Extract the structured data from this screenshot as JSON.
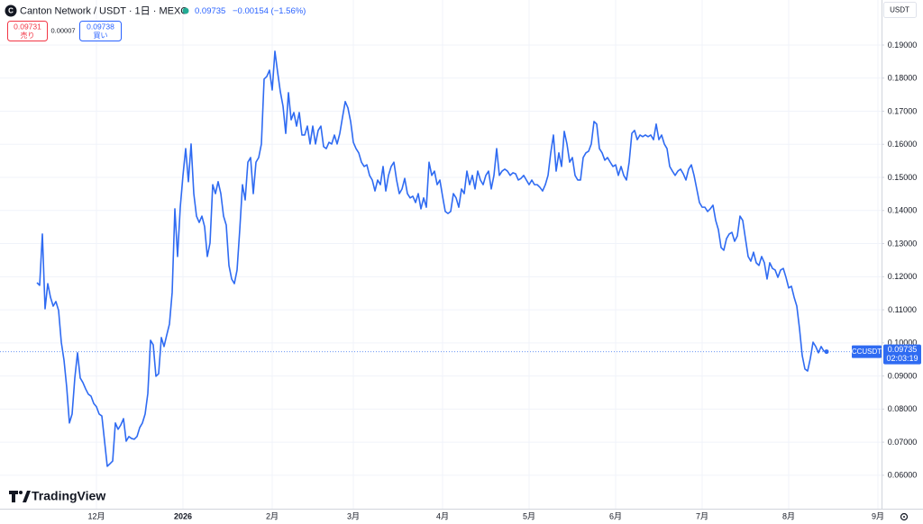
{
  "chart_data": {
    "type": "line",
    "title": "Canton Network / USDT · 1日 · MEXC",
    "last_price": 0.09735,
    "change": "−0.00154 (−1.56%)",
    "sell_price": 0.09731,
    "sell_label": "売り",
    "spread": 7e-05,
    "buy_price": 0.09738,
    "buy_label": "買い",
    "currency": "USDT",
    "symbol_tag": "CCUSDT",
    "countdown": "02:03:19",
    "brand": "TradingView",
    "color": "#2f6bf2",
    "grid": true,
    "categories": [
      null,
      null,
      null,
      null,
      null,
      null,
      null,
      null,
      null,
      null,
      null,
      null,
      null,
      null,
      null,
      null,
      null,
      null,
      null,
      null,
      null,
      null,
      "12月",
      null,
      null,
      null,
      null,
      null,
      null,
      null,
      null,
      null,
      null,
      null,
      null,
      null,
      null,
      null,
      null,
      null,
      null,
      null,
      null,
      null,
      null,
      null,
      null,
      null,
      null,
      null,
      null,
      null,
      null,
      null,
      "2026",
      null,
      null,
      null,
      null,
      null,
      null,
      null,
      null,
      null,
      null,
      null,
      null,
      null,
      null,
      null,
      null,
      null,
      null,
      null,
      null,
      null,
      null,
      null,
      null,
      null,
      null,
      null,
      null,
      null,
      null,
      null,
      null,
      "2月",
      null,
      null,
      null,
      null,
      null,
      null,
      null,
      null,
      null,
      null,
      null,
      null,
      null,
      null,
      null,
      null,
      null,
      null,
      null,
      null,
      null,
      null,
      null,
      null,
      null,
      null,
      null,
      null,
      null,
      "3月",
      null,
      null,
      null,
      null,
      null,
      null,
      null,
      null,
      null,
      null,
      null,
      null,
      null,
      null,
      null,
      null,
      null,
      null,
      null,
      null,
      null,
      null,
      null,
      null,
      null,
      null,
      null,
      null,
      null,
      null,
      null,
      null,
      "4月",
      null,
      null,
      null,
      null,
      null,
      null,
      null,
      null,
      null,
      null,
      null,
      null,
      null,
      null,
      null,
      null,
      null,
      null,
      null,
      null,
      null,
      null,
      null,
      null,
      null,
      null,
      null,
      null,
      null,
      null,
      null,
      "5月",
      null,
      null,
      null,
      null,
      null,
      null,
      null,
      null,
      null,
      null,
      null,
      null,
      null,
      null,
      null,
      null,
      null,
      null,
      null,
      null,
      null,
      null,
      null,
      null,
      null,
      null,
      null,
      null,
      null,
      null,
      null,
      "6月",
      null,
      null,
      null,
      null,
      null,
      null,
      null,
      null,
      null,
      null,
      null,
      null,
      null,
      null,
      null,
      null,
      null,
      null,
      null,
      null,
      null,
      null,
      null,
      null,
      null,
      null,
      null,
      null,
      null,
      null,
      null,
      "7月",
      null,
      null,
      null,
      null,
      null,
      null,
      null,
      null,
      null,
      null,
      null,
      null,
      null,
      null,
      null,
      null,
      null,
      null,
      null,
      null,
      null,
      null,
      null,
      null,
      null,
      null,
      null,
      null,
      null,
      null,
      null,
      "8月",
      null,
      null,
      null,
      null,
      null,
      null,
      null,
      null,
      null,
      null,
      null,
      null,
      null,
      null,
      null,
      null,
      null,
      null,
      null,
      null,
      null,
      null,
      null,
      null,
      null,
      null,
      null,
      null,
      null,
      null,
      null,
      null,
      "9月"
    ],
    "values": [
      0.1182,
      0.1174,
      0.1329,
      0.1103,
      0.1179,
      0.1138,
      0.1111,
      0.1125,
      0.1098,
      0.1002,
      0.0948,
      0.0866,
      0.0758,
      0.0785,
      0.0894,
      0.097,
      0.0894,
      0.088,
      0.0861,
      0.0845,
      0.0839,
      0.0817,
      0.0807,
      0.0785,
      0.0779,
      0.0703,
      0.0627,
      0.0635,
      0.0643,
      0.0758,
      0.0739,
      0.0752,
      0.0771,
      0.0703,
      0.0717,
      0.0711,
      0.0709,
      0.0717,
      0.0744,
      0.0758,
      0.0785,
      0.0847,
      0.1008,
      0.0994,
      0.0899,
      0.0907,
      0.1016,
      0.0989,
      0.1024,
      0.1057,
      0.1152,
      0.1405,
      0.1261,
      0.141,
      0.1506,
      0.1587,
      0.1487,
      0.1601,
      0.1451,
      0.1383,
      0.1364,
      0.1383,
      0.1351,
      0.1261,
      0.1302,
      0.1478,
      0.1451,
      0.1487,
      0.1451,
      0.1383,
      0.1356,
      0.1234,
      0.1193,
      0.1179,
      0.122,
      0.1342,
      0.1478,
      0.1432,
      0.1546,
      0.156,
      0.1451,
      0.1546,
      0.156,
      0.1601,
      0.1797,
      0.1805,
      0.1824,
      0.1764,
      0.1881,
      0.1818,
      0.1759,
      0.1715,
      0.1633,
      0.1756,
      0.1674,
      0.1696,
      0.1655,
      0.1696,
      0.1628,
      0.1628,
      0.1655,
      0.1601,
      0.1655,
      0.1601,
      0.1642,
      0.1655,
      0.1593,
      0.1587,
      0.1606,
      0.1601,
      0.1628,
      0.1601,
      0.1633,
      0.1682,
      0.1729,
      0.171,
      0.1669,
      0.1606,
      0.1587,
      0.1574,
      0.1546,
      0.1533,
      0.1538,
      0.1506,
      0.1492,
      0.1459,
      0.1492,
      0.1478,
      0.1533,
      0.1459,
      0.1506,
      0.1533,
      0.1546,
      0.1492,
      0.1451,
      0.1465,
      0.1497,
      0.1451,
      0.1438,
      0.1443,
      0.1424,
      0.1451,
      0.1405,
      0.1438,
      0.141,
      0.1546,
      0.1506,
      0.1519,
      0.1478,
      0.1492,
      0.1443,
      0.1397,
      0.1391,
      0.1397,
      0.1451,
      0.1438,
      0.141,
      0.1465,
      0.1451,
      0.1519,
      0.1478,
      0.1506,
      0.1465,
      0.1519,
      0.1492,
      0.1478,
      0.1506,
      0.1519,
      0.1465,
      0.1506,
      0.1587,
      0.1506,
      0.1519,
      0.1525,
      0.1519,
      0.1506,
      0.1514,
      0.1511,
      0.1492,
      0.1497,
      0.1506,
      0.1492,
      0.1478,
      0.1492,
      0.1478,
      0.1478,
      0.147,
      0.1459,
      0.1478,
      0.1506,
      0.1574,
      0.1628,
      0.1519,
      0.1574,
      0.1533,
      0.1639,
      0.1601,
      0.1546,
      0.156,
      0.1506,
      0.1492,
      0.1492,
      0.156,
      0.1574,
      0.1579,
      0.1601,
      0.1669,
      0.1661,
      0.1587,
      0.1574,
      0.1552,
      0.156,
      0.1546,
      0.1533,
      0.1538,
      0.1506,
      0.1533,
      0.1506,
      0.1492,
      0.1546,
      0.1633,
      0.1642,
      0.1614,
      0.1628,
      0.1623,
      0.1628,
      0.1623,
      0.1628,
      0.1614,
      0.1661,
      0.1614,
      0.1628,
      0.1601,
      0.1587,
      0.1533,
      0.1519,
      0.1506,
      0.1519,
      0.1525,
      0.1511,
      0.1492,
      0.1525,
      0.1538,
      0.1506,
      0.1465,
      0.1424,
      0.141,
      0.141,
      0.1397,
      0.1405,
      0.1416,
      0.137,
      0.1342,
      0.1288,
      0.128,
      0.1315,
      0.1329,
      0.1334,
      0.1307,
      0.1323,
      0.1383,
      0.137,
      0.1315,
      0.1261,
      0.1247,
      0.1274,
      0.1242,
      0.1234,
      0.1261,
      0.1242,
      0.1193,
      0.1242,
      0.1225,
      0.122,
      0.1198,
      0.122,
      0.1225,
      0.1198,
      0.1166,
      0.1171,
      0.1138,
      0.1111,
      0.1043,
      0.0962,
      0.0921,
      0.0915,
      0.0953,
      0.1002,
      0.0989,
      0.097,
      0.0989,
      0.0975,
      0.09735,
      null,
      null,
      null,
      null,
      null,
      null,
      null,
      null,
      null,
      null,
      null,
      null,
      null,
      null,
      null,
      null,
      null,
      null,
      null
    ],
    "ylim": [
      0.0499,
      0.2036
    ],
    "yticks": [
      {
        "value": 0.06,
        "label": "0.06000"
      },
      {
        "value": 0.07,
        "label": "0.07000"
      },
      {
        "value": 0.08,
        "label": "0.08000"
      },
      {
        "value": 0.09,
        "label": "0.09000"
      },
      {
        "value": 0.1,
        "label": "0.10000"
      },
      {
        "value": 0.11,
        "label": "0.11000"
      },
      {
        "value": 0.12,
        "label": "0.12000"
      },
      {
        "value": 0.13,
        "label": "0.13000"
      },
      {
        "value": 0.14,
        "label": "0.14000"
      },
      {
        "value": 0.15,
        "label": "0.15000"
      },
      {
        "value": 0.16,
        "label": "0.16000"
      },
      {
        "value": 0.17,
        "label": "0.17000"
      },
      {
        "value": 0.18,
        "label": "0.18000"
      },
      {
        "value": 0.19,
        "label": "0.19000"
      }
    ]
  }
}
